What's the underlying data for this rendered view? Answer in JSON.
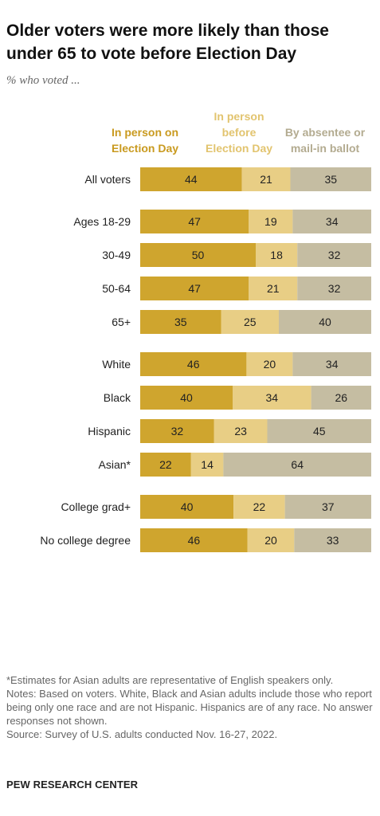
{
  "title": "Older voters were more likely than those under 65 to vote before Election Day",
  "subtitle": "% who voted ...",
  "legend": [
    {
      "label_line1": "In person on",
      "label_line2": "Election Day",
      "label_line3": "",
      "color": "#CFA52E"
    },
    {
      "label_line1": "In person",
      "label_line2": "before",
      "label_line3": "Election Day",
      "color": "#E8CE85"
    },
    {
      "label_line1": "By absentee or",
      "label_line2": "mail-in ballot",
      "label_line3": "",
      "color": "#C5BDA2"
    }
  ],
  "chart_data": {
    "type": "bar",
    "stacked": true,
    "orientation": "horizontal",
    "series": [
      {
        "name": "In person on Election Day",
        "color": "#CFA52E",
        "label_color": "#222222"
      },
      {
        "name": "In person before Election Day",
        "color": "#E8CE85",
        "label_color": "#222222"
      },
      {
        "name": "By absentee or mail-in ballot",
        "color": "#C5BDA2",
        "label_color": "#222222"
      }
    ],
    "groups": [
      {
        "rows": [
          {
            "category": "All voters",
            "values": [
              44,
              21,
              35
            ]
          }
        ]
      },
      {
        "rows": [
          {
            "category": "Ages 18-29",
            "values": [
              47,
              19,
              34
            ]
          },
          {
            "category": "30-49",
            "values": [
              50,
              18,
              32
            ]
          },
          {
            "category": "50-64",
            "values": [
              47,
              21,
              32
            ]
          },
          {
            "category": "65+",
            "values": [
              35,
              25,
              40
            ]
          }
        ]
      },
      {
        "rows": [
          {
            "category": "White",
            "values": [
              46,
              20,
              34
            ]
          },
          {
            "category": "Black",
            "values": [
              40,
              34,
              26
            ]
          },
          {
            "category": "Hispanic",
            "values": [
              32,
              23,
              45
            ]
          },
          {
            "category": "Asian*",
            "values": [
              22,
              14,
              64
            ]
          }
        ]
      },
      {
        "rows": [
          {
            "category": "College grad+",
            "values": [
              40,
              22,
              37
            ]
          },
          {
            "category": "No college degree",
            "values": [
              46,
              20,
              33
            ]
          }
        ]
      }
    ]
  },
  "notes": {
    "asterisk": "*Estimates for Asian adults are representative of English speakers only.",
    "notes": "Notes: Based on voters. White, Black and Asian adults include those who report being only one race and are not Hispanic. Hispanics are of any race. No answer responses not shown.",
    "source": "Source: Survey of U.S. adults conducted Nov. 16-27, 2022."
  },
  "brand": "PEW RESEARCH CENTER"
}
